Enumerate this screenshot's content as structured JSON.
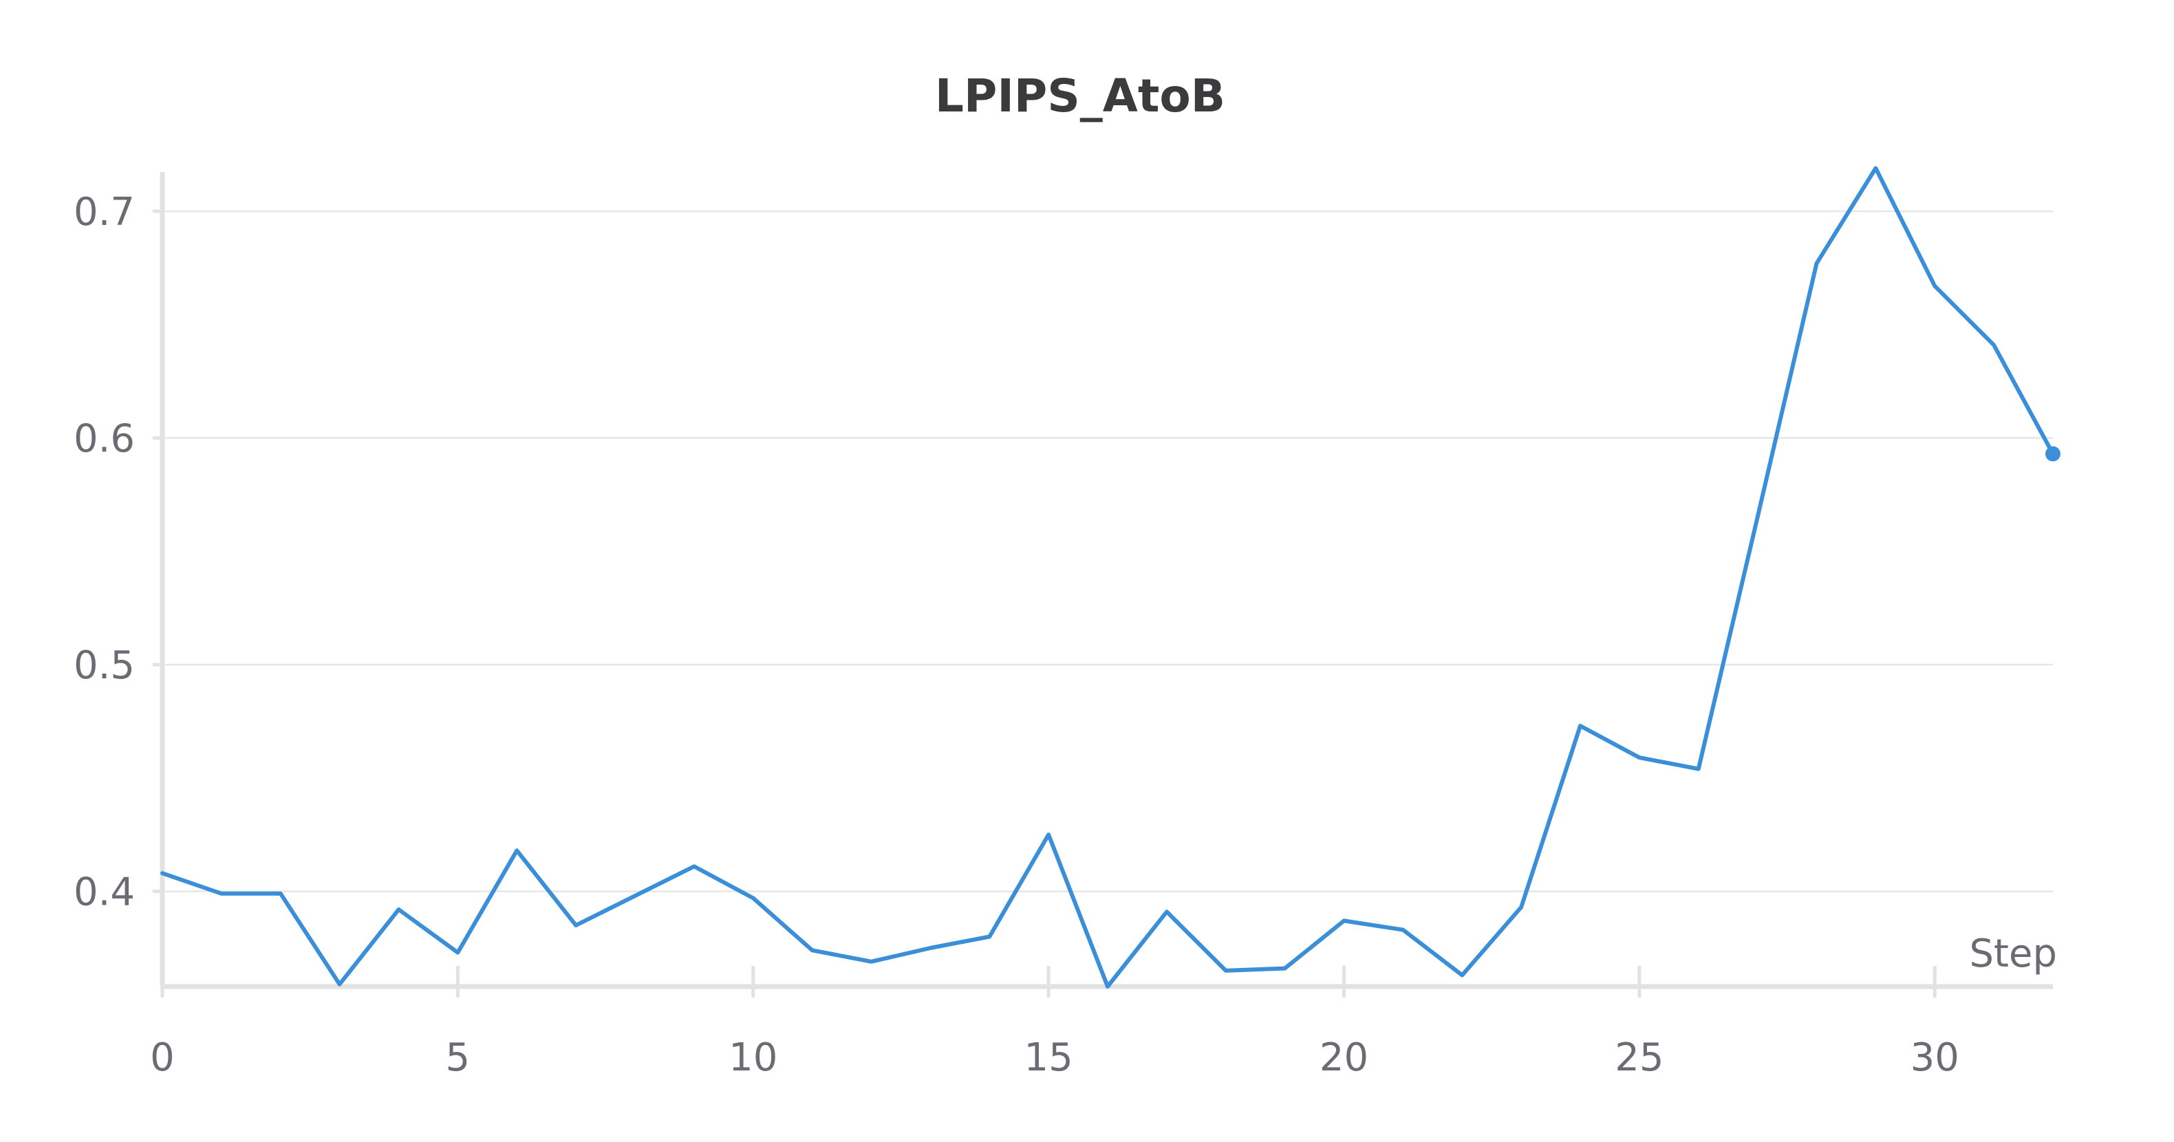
{
  "chart_data": {
    "type": "line",
    "title": "LPIPS_AtoB",
    "xlabel": "Step",
    "ylabel": "",
    "xlim": [
      0,
      32
    ],
    "ylim": [
      0.358,
      0.72
    ],
    "x_ticks": [
      0,
      5,
      10,
      15,
      20,
      25,
      30
    ],
    "y_ticks": [
      0.4,
      0.5,
      0.6,
      0.7
    ],
    "y_tick_labels": [
      "0.4",
      "0.5",
      "0.6",
      "0.7"
    ],
    "grid": true,
    "legend": "none",
    "colors": {
      "series": "#3b8fd9",
      "grid": "#e6e6e6",
      "axis": "#e2e2e2",
      "text": "#6b6b73",
      "title": "#3b3b3d"
    },
    "series": [
      {
        "x": [
          0,
          1,
          2,
          3,
          4,
          5,
          6,
          7,
          8,
          9,
          10,
          11,
          12,
          13,
          14,
          15,
          16,
          17,
          18,
          19,
          20,
          21,
          22,
          23,
          24,
          25,
          26,
          27,
          28,
          29,
          30,
          31,
          32
        ],
        "values": [
          0.408,
          0.399,
          0.399,
          0.359,
          0.392,
          0.373,
          0.418,
          0.385,
          0.398,
          0.411,
          0.397,
          0.374,
          0.369,
          0.375,
          0.38,
          0.425,
          0.358,
          0.391,
          0.365,
          0.366,
          0.387,
          0.383,
          0.363,
          0.393,
          0.473,
          0.459,
          0.454,
          0.565,
          0.677,
          0.719,
          0.667,
          0.641,
          0.593
        ]
      }
    ]
  }
}
